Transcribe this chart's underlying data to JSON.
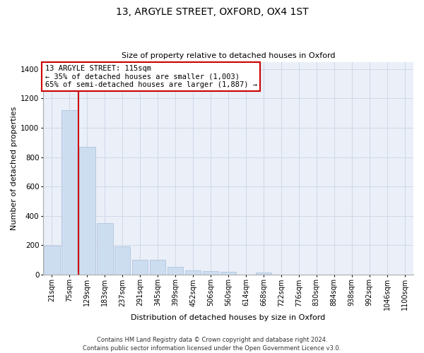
{
  "title_line1": "13, ARGYLE STREET, OXFORD, OX4 1ST",
  "title_line2": "Size of property relative to detached houses in Oxford",
  "xlabel": "Distribution of detached houses by size in Oxford",
  "ylabel": "Number of detached properties",
  "categories": [
    "21sqm",
    "75sqm",
    "129sqm",
    "183sqm",
    "237sqm",
    "291sqm",
    "345sqm",
    "399sqm",
    "452sqm",
    "506sqm",
    "560sqm",
    "614sqm",
    "668sqm",
    "722sqm",
    "776sqm",
    "830sqm",
    "884sqm",
    "938sqm",
    "992sqm",
    "1046sqm",
    "1100sqm"
  ],
  "values": [
    195,
    1120,
    870,
    350,
    190,
    100,
    100,
    50,
    25,
    20,
    18,
    0,
    15,
    0,
    0,
    0,
    0,
    0,
    0,
    0,
    0
  ],
  "bar_color": "#ccddf0",
  "bar_edgecolor": "#aabdd8",
  "grid_color": "#d0d8e8",
  "background_color": "#eaeff8",
  "red_color": "#cc0000",
  "annotation_line1": "13 ARGYLE STREET: 115sqm",
  "annotation_line2": "← 35% of detached houses are smaller (1,003)",
  "annotation_line3": "65% of semi-detached houses are larger (1,887) →",
  "ylim": [
    0,
    1450
  ],
  "yticks": [
    0,
    200,
    400,
    600,
    800,
    1000,
    1200,
    1400
  ],
  "footer_line1": "Contains HM Land Registry data © Crown copyright and database right 2024.",
  "footer_line2": "Contains public sector information licensed under the Open Government Licence v3.0.",
  "title1_fontsize": 10,
  "title2_fontsize": 8,
  "ylabel_fontsize": 8,
  "xlabel_fontsize": 8,
  "tick_fontsize": 7,
  "footer_fontsize": 6,
  "ann_fontsize": 7.5,
  "red_line_x": 1.5
}
